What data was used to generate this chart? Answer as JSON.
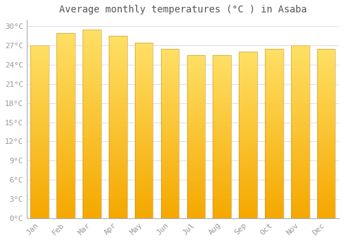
{
  "title": "Average monthly temperatures (°C ) in Asaba",
  "months": [
    "Jan",
    "Feb",
    "Mar",
    "Apr",
    "May",
    "Jun",
    "Jul",
    "Aug",
    "Sep",
    "Oct",
    "Nov",
    "Dec"
  ],
  "values": [
    27.0,
    29.0,
    29.5,
    28.5,
    27.5,
    26.5,
    25.5,
    25.5,
    26.0,
    26.5,
    27.0,
    26.5
  ],
  "background_color": "#ffffff",
  "grid_color": "#dddddd",
  "ylim": [
    0,
    31
  ],
  "yticks": [
    0,
    3,
    6,
    9,
    12,
    15,
    18,
    21,
    24,
    27,
    30
  ],
  "bar_color_bottom": "#F5A800",
  "bar_color_top": "#FFE066",
  "title_fontsize": 10,
  "tick_fontsize": 8,
  "figsize": [
    5.0,
    3.5
  ],
  "dpi": 100
}
